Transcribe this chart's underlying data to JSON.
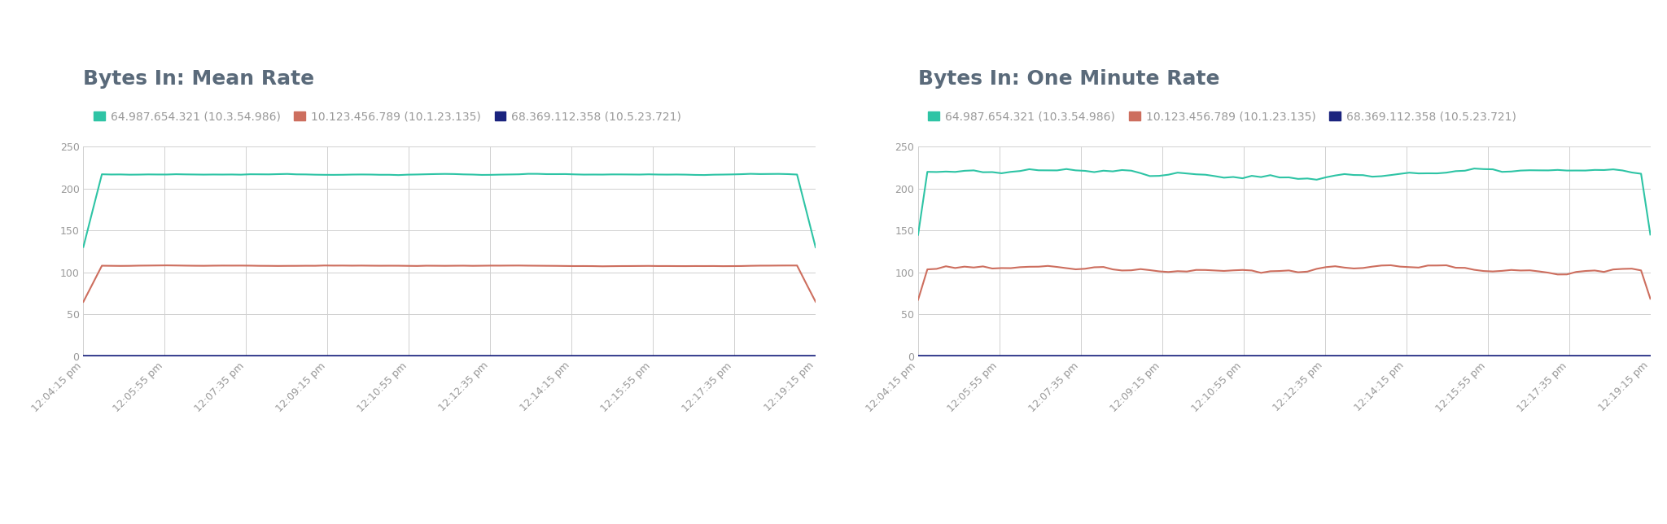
{
  "title_left": "Bytes In: Mean Rate",
  "title_right": "Bytes In: One Minute Rate",
  "legend_labels": [
    "64.987.654.321 (10.3.54.986)",
    "10.123.456.789 (10.1.23.135)",
    "68.369.112.358 (10.5.23.721)"
  ],
  "colors": [
    "#2ec4a5",
    "#cd6e5e",
    "#1a237e"
  ],
  "x_labels": [
    "12:04:15 pm",
    "12:05:55 pm",
    "12:07:35 pm",
    "12:09:15 pm",
    "12:10:55 pm",
    "12:12:35 pm",
    "12:14:15 pm",
    "12:15:55 pm",
    "12:17:35 pm",
    "12:19:15 pm"
  ],
  "n_points": 80,
  "ylim": [
    0,
    250
  ],
  "yticks": [
    0,
    50,
    100,
    150,
    200,
    250
  ],
  "mean_green_base": 217,
  "mean_green_noise": 0.8,
  "mean_red_base": 108,
  "mean_red_noise": 0.5,
  "mean_blue": 0.5,
  "one_min_green_base": 218,
  "one_min_green_noise": 3.5,
  "one_min_red_base": 104,
  "one_min_red_noise": 3.0,
  "one_min_blue": 0.5,
  "title_fontsize": 18,
  "legend_fontsize": 10,
  "tick_fontsize": 9,
  "background_color": "#ffffff",
  "grid_color": "#d0d0d0",
  "title_color": "#5a6a7a",
  "tick_color": "#999999"
}
